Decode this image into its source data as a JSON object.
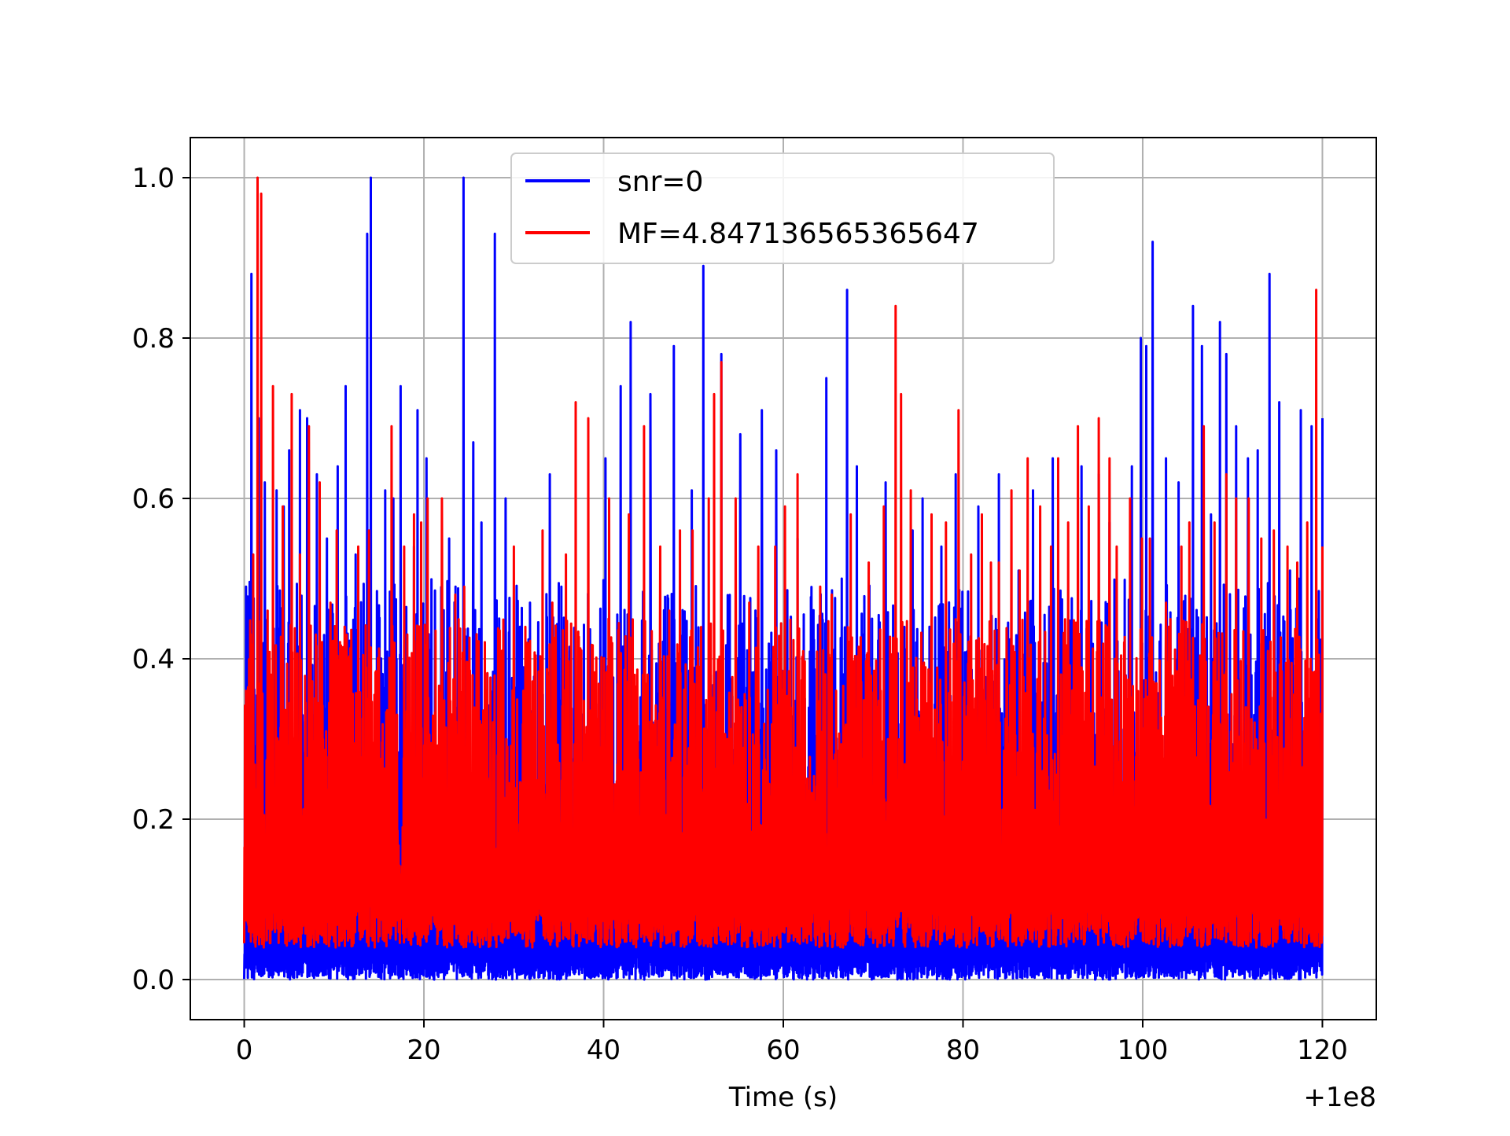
{
  "chart_data": {
    "type": "line",
    "title": "",
    "xlabel": "Time (s)",
    "ylabel": "",
    "x_offset_label": "+1e8",
    "xlim": [
      -6,
      126
    ],
    "ylim": [
      -0.05,
      1.05
    ],
    "xticks": [
      0,
      20,
      40,
      60,
      80,
      100,
      120
    ],
    "yticks": [
      0.0,
      0.2,
      0.4,
      0.6,
      0.8,
      1.0
    ],
    "xtick_labels": [
      "0",
      "20",
      "40",
      "60",
      "80",
      "100",
      "120"
    ],
    "ytick_labels": [
      "0.0",
      "0.2",
      "0.4",
      "0.6",
      "0.8",
      "1.0"
    ],
    "grid": true,
    "legend_position": "top-center",
    "series": [
      {
        "name": "snr=0",
        "color": "#0000ff",
        "x_range": [
          0,
          120
        ],
        "baseline_range": [
          0.0,
          0.03
        ],
        "body_max": 0.5,
        "peaks": [
          [
            0.2,
            0.49
          ],
          [
            0.8,
            0.88
          ],
          [
            1.6,
            0.7
          ],
          [
            2.3,
            0.62
          ],
          [
            3.6,
            0.61
          ],
          [
            4.4,
            0.59
          ],
          [
            5.0,
            0.66
          ],
          [
            6.2,
            0.71
          ],
          [
            7.0,
            0.7
          ],
          [
            8.1,
            0.63
          ],
          [
            9.2,
            0.55
          ],
          [
            10.4,
            0.64
          ],
          [
            11.3,
            0.74
          ],
          [
            12.4,
            0.53
          ],
          [
            13.7,
            0.93
          ],
          [
            14.1,
            1.0
          ],
          [
            15.7,
            0.61
          ],
          [
            16.6,
            0.6
          ],
          [
            17.4,
            0.74
          ],
          [
            18.9,
            0.54
          ],
          [
            19.3,
            0.71
          ],
          [
            20.3,
            0.65
          ],
          [
            22.8,
            0.55
          ],
          [
            24.4,
            1.0
          ],
          [
            25.5,
            0.67
          ],
          [
            26.4,
            0.57
          ],
          [
            27.9,
            0.93
          ],
          [
            29.1,
            0.6
          ],
          [
            30.7,
            0.44
          ],
          [
            31.8,
            0.47
          ],
          [
            34.0,
            0.63
          ],
          [
            35.3,
            0.49
          ],
          [
            40.2,
            0.65
          ],
          [
            41.9,
            0.74
          ],
          [
            43.0,
            0.82
          ],
          [
            45.2,
            0.73
          ],
          [
            47.8,
            0.79
          ],
          [
            49.8,
            0.61
          ],
          [
            51.1,
            0.89
          ],
          [
            53.1,
            0.78
          ],
          [
            55.2,
            0.68
          ],
          [
            57.6,
            0.71
          ],
          [
            59.2,
            0.66
          ],
          [
            61.6,
            0.55
          ],
          [
            64.8,
            0.75
          ],
          [
            66.5,
            0.5
          ],
          [
            67.1,
            0.86
          ],
          [
            68.2,
            0.64
          ],
          [
            71.4,
            0.62
          ],
          [
            74.4,
            0.56
          ],
          [
            75.5,
            0.6
          ],
          [
            77.6,
            0.54
          ],
          [
            79.2,
            0.63
          ],
          [
            81.7,
            0.59
          ],
          [
            84.0,
            0.63
          ],
          [
            86.2,
            0.51
          ],
          [
            87.8,
            0.61
          ],
          [
            90.0,
            0.65
          ],
          [
            93.2,
            0.64
          ],
          [
            95.1,
            0.63
          ],
          [
            96.3,
            0.57
          ],
          [
            98.8,
            0.64
          ],
          [
            99.8,
            0.8
          ],
          [
            100.4,
            0.79
          ],
          [
            101.1,
            0.92
          ],
          [
            102.6,
            0.65
          ],
          [
            104.0,
            0.62
          ],
          [
            105.6,
            0.84
          ],
          [
            106.6,
            0.79
          ],
          [
            107.6,
            0.58
          ],
          [
            108.6,
            0.82
          ],
          [
            109.3,
            0.78
          ],
          [
            110.4,
            0.69
          ],
          [
            111.7,
            0.65
          ],
          [
            112.8,
            0.66
          ],
          [
            114.1,
            0.88
          ],
          [
            115.2,
            0.72
          ],
          [
            116.4,
            0.51
          ],
          [
            117.6,
            0.71
          ],
          [
            118.8,
            0.69
          ],
          [
            120.0,
            0.7
          ]
        ]
      },
      {
        "name": "MF=4.847136565365647",
        "color": "#ff0000",
        "x_range": [
          0,
          120
        ],
        "baseline_range": [
          0.04,
          0.1
        ],
        "body_max": 0.45,
        "peaks": [
          [
            0.2,
            0.36
          ],
          [
            1.0,
            0.53
          ],
          [
            1.5,
            1.0
          ],
          [
            1.9,
            0.98
          ],
          [
            2.6,
            0.46
          ],
          [
            3.2,
            0.74
          ],
          [
            4.3,
            0.59
          ],
          [
            5.3,
            0.73
          ],
          [
            6.2,
            0.53
          ],
          [
            7.2,
            0.69
          ],
          [
            8.4,
            0.62
          ],
          [
            9.6,
            0.47
          ],
          [
            10.3,
            0.56
          ],
          [
            11.4,
            0.43
          ],
          [
            12.7,
            0.54
          ],
          [
            13.9,
            0.56
          ],
          [
            16.4,
            0.69
          ],
          [
            17.8,
            0.54
          ],
          [
            18.9,
            0.58
          ],
          [
            19.7,
            0.57
          ],
          [
            20.4,
            0.6
          ],
          [
            22.0,
            0.6
          ],
          [
            23.5,
            0.48
          ],
          [
            24.5,
            0.49
          ],
          [
            28.7,
            0.41
          ],
          [
            30.0,
            0.54
          ],
          [
            31.5,
            0.42
          ],
          [
            33.2,
            0.56
          ],
          [
            34.3,
            0.47
          ],
          [
            35.8,
            0.53
          ],
          [
            36.9,
            0.72
          ],
          [
            38.3,
            0.7
          ],
          [
            40.6,
            0.6
          ],
          [
            42.8,
            0.58
          ],
          [
            44.5,
            0.69
          ],
          [
            46.3,
            0.54
          ],
          [
            47.3,
            0.46
          ],
          [
            48.5,
            0.56
          ],
          [
            49.9,
            0.56
          ],
          [
            51.7,
            0.6
          ],
          [
            52.3,
            0.73
          ],
          [
            53.1,
            0.77
          ],
          [
            54.7,
            0.6
          ],
          [
            56.2,
            0.47
          ],
          [
            57.2,
            0.54
          ],
          [
            59.1,
            0.54
          ],
          [
            60.2,
            0.59
          ],
          [
            61.6,
            0.63
          ],
          [
            64.1,
            0.49
          ],
          [
            65.4,
            0.48
          ],
          [
            67.5,
            0.58
          ],
          [
            69.5,
            0.52
          ],
          [
            71.2,
            0.59
          ],
          [
            72.5,
            0.84
          ],
          [
            73.1,
            0.73
          ],
          [
            74.2,
            0.61
          ],
          [
            76.5,
            0.58
          ],
          [
            78.1,
            0.57
          ],
          [
            79.5,
            0.71
          ],
          [
            80.9,
            0.53
          ],
          [
            82.1,
            0.58
          ],
          [
            83.1,
            0.52
          ],
          [
            84.0,
            0.52
          ],
          [
            85.4,
            0.61
          ],
          [
            86.3,
            0.51
          ],
          [
            87.2,
            0.65
          ],
          [
            88.6,
            0.59
          ],
          [
            89.8,
            0.54
          ],
          [
            90.6,
            0.65
          ],
          [
            91.7,
            0.57
          ],
          [
            92.8,
            0.69
          ],
          [
            94.0,
            0.59
          ],
          [
            95.1,
            0.7
          ],
          [
            96.3,
            0.65
          ],
          [
            97.1,
            0.54
          ],
          [
            98.6,
            0.6
          ],
          [
            99.9,
            0.55
          ],
          [
            100.8,
            0.55
          ],
          [
            102.6,
            0.47
          ],
          [
            104.3,
            0.54
          ],
          [
            105.2,
            0.57
          ],
          [
            106.8,
            0.69
          ],
          [
            108.0,
            0.57
          ],
          [
            109.3,
            0.63
          ],
          [
            110.4,
            0.6
          ],
          [
            111.8,
            0.6
          ],
          [
            113.2,
            0.55
          ],
          [
            114.6,
            0.56
          ],
          [
            116.1,
            0.54
          ],
          [
            117.2,
            0.52
          ],
          [
            118.3,
            0.57
          ],
          [
            119.3,
            0.86
          ],
          [
            120.0,
            0.54
          ]
        ]
      }
    ]
  }
}
